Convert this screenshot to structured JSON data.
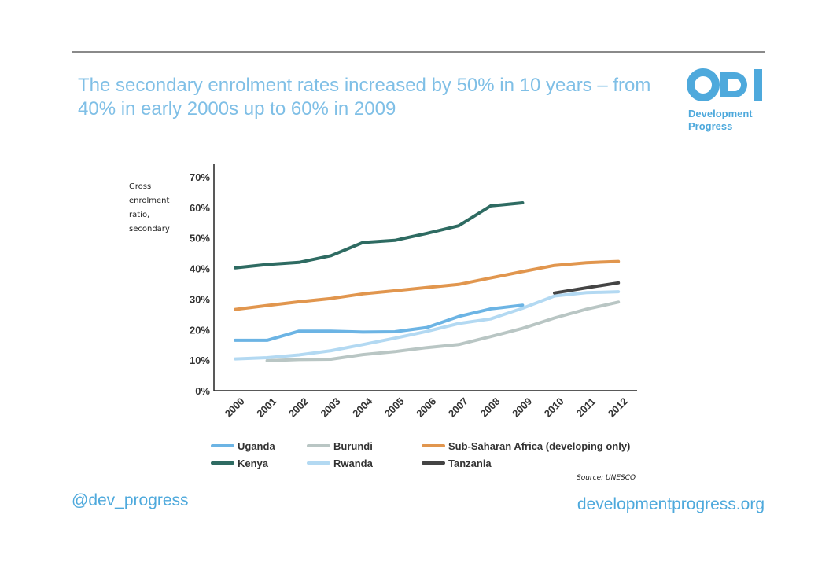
{
  "slide": {
    "headline": "The secondary enrolment rates increased by 50% in 10 years – from 40% in early 2000s up to 60% in 2009",
    "logo": {
      "mark_icon": "odi-logo-icon",
      "line1": "Development",
      "line2": "Progress",
      "color": "#4ea9dc"
    },
    "source": "Source: UNESCO",
    "twitter_handle": "@dev_progress",
    "website": "developmentprogress.org"
  },
  "chart_data": {
    "type": "line",
    "title": "",
    "ylabel": "Gross enrolment ratio, secondary",
    "xlabel": "",
    "x": [
      "2000",
      "2001",
      "2002",
      "2003",
      "2004",
      "2005",
      "2006",
      "2007",
      "2008",
      "2009",
      "2010",
      "2011",
      "2012"
    ],
    "ylim": [
      0,
      70
    ],
    "y_ticks": [
      "0%",
      "10%",
      "20%",
      "30%",
      "40%",
      "50%",
      "60%",
      "70%"
    ],
    "grid": false,
    "legend_position": "bottom",
    "series": [
      {
        "name": "Uganda",
        "color": "#6cb4e4",
        "values": [
          16.5,
          16.5,
          19.5,
          19.5,
          19.2,
          19.3,
          20.7,
          24.3,
          26.8,
          28,
          null,
          null,
          null
        ]
      },
      {
        "name": "Kenya",
        "color": "#2e6b62",
        "values": [
          40.2,
          41.3,
          42,
          44.2,
          48.5,
          49.2,
          51.5,
          54,
          60.5,
          61.5,
          null,
          null,
          null
        ]
      },
      {
        "name": "Burundi",
        "color": "#b9c6c4",
        "values": [
          null,
          9.8,
          10.2,
          10.3,
          11.8,
          12.8,
          14.1,
          15.1,
          17.7,
          20.4,
          23.8,
          26.7,
          29
        ]
      },
      {
        "name": "Rwanda",
        "color": "#b3d9f2",
        "values": [
          10.4,
          10.8,
          11.7,
          13.1,
          15.1,
          17.2,
          19.4,
          22,
          23.5,
          27,
          31,
          32.1,
          32.4
        ]
      },
      {
        "name": "Sub-Saharan Africa (developing only)",
        "color": "#e1964e",
        "values": [
          26.6,
          27.9,
          29.1,
          30.2,
          31.7,
          32.7,
          33.8,
          34.8,
          36.9,
          39,
          41,
          41.9,
          42.3
        ]
      },
      {
        "name": "Tanzania",
        "color": "#444444",
        "values": [
          null,
          null,
          null,
          null,
          null,
          null,
          null,
          null,
          null,
          null,
          32,
          33.7,
          35.3
        ]
      }
    ]
  }
}
